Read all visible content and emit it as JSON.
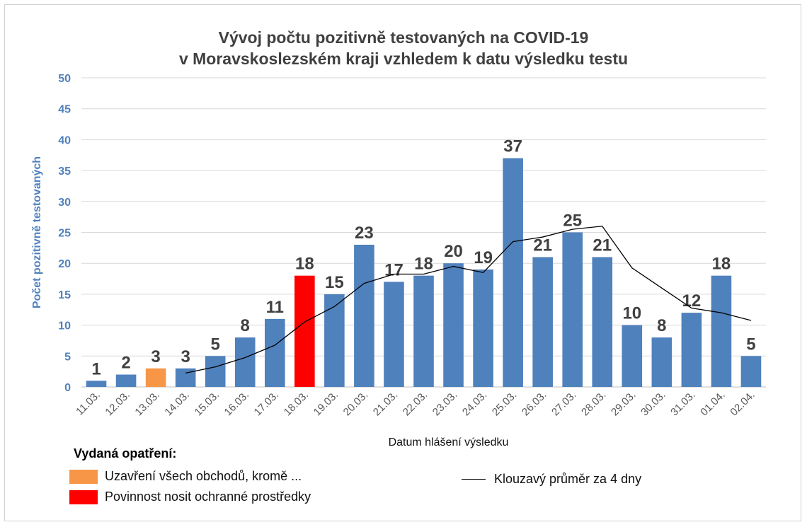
{
  "title_line1": "Vývoj počtu pozitivně testovaných na COVID-19",
  "title_line2": "v Moravskoslezském kraji vzhledem k datu výsledku testu",
  "legend": {
    "title": "Vydaná opatření:",
    "orange_label": "Uzavření všech obchodů, kromě ...",
    "red_label": "Povinnost nosit ochranné prostředky",
    "line_label": "Klouzavý průměr za 4 dny"
  },
  "colors": {
    "bar": "#4f81bd",
    "orange": "#f79646",
    "red": "#ff0000",
    "avg_line": "#000000",
    "axis_text": "#4f81bd",
    "grid": "#d9d9d9"
  },
  "chart_data": {
    "type": "bar",
    "title": "Vývoj počtu pozitivně testovaných na COVID-19 v Moravskoslezském kraji vzhledem k datu výsledku testu",
    "xlabel": "Datum hlášení výsledku",
    "ylabel": "Počet pozitivně testovaných",
    "ylim": [
      0,
      50
    ],
    "yticks": [
      0,
      5,
      10,
      15,
      20,
      25,
      30,
      35,
      40,
      45,
      50
    ],
    "grid": true,
    "categories": [
      "11.03.",
      "12.03.",
      "13.03.",
      "14.03.",
      "15.03.",
      "16.03.",
      "17.03.",
      "18.03.",
      "19.03.",
      "20.03.",
      "21.03.",
      "22.03.",
      "23.03.",
      "24.03.",
      "25.03.",
      "26.03.",
      "27.03.",
      "28.03.",
      "29.03.",
      "30.03.",
      "31.03.",
      "01.04.",
      "02.04."
    ],
    "values": [
      1,
      2,
      3,
      3,
      5,
      8,
      11,
      18,
      15,
      23,
      17,
      18,
      20,
      19,
      37,
      21,
      25,
      21,
      10,
      8,
      12,
      18,
      5
    ],
    "highlight": {
      "13.03.": "orange",
      "18.03.": "red"
    },
    "moving_average": {
      "name": "Klouzavý průměr za 4 dny",
      "values": [
        null,
        null,
        null,
        2.25,
        3.25,
        4.75,
        6.75,
        10.5,
        13.0,
        16.75,
        18.25,
        18.25,
        19.5,
        18.5,
        23.5,
        24.25,
        25.5,
        26.0,
        19.25,
        16.0,
        12.75,
        12.0,
        10.75
      ]
    },
    "legend_position": "bottom"
  }
}
